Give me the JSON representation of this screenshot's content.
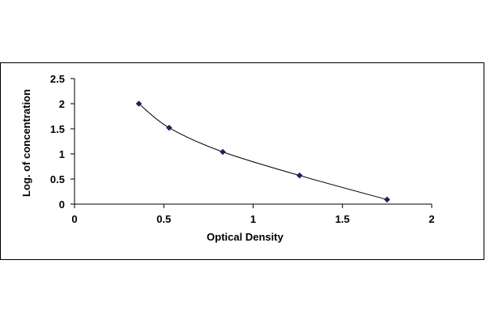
{
  "chart_data": {
    "type": "scatter",
    "xlabel": "Optical Density",
    "ylabel": "Log. of concentration",
    "xlim": [
      0,
      2
    ],
    "ylim": [
      0,
      2.5
    ],
    "x_ticks": [
      "0",
      "0.5",
      "1",
      "1.5",
      "2"
    ],
    "y_ticks": [
      "0",
      "0.5",
      "1",
      "1.5",
      "2",
      "2.5"
    ],
    "grid": false,
    "trendline": "smooth curve through points",
    "points": [
      {
        "x": 0.36,
        "y": 2.0
      },
      {
        "x": 0.53,
        "y": 1.52
      },
      {
        "x": 0.83,
        "y": 1.04
      },
      {
        "x": 1.26,
        "y": 0.57
      },
      {
        "x": 1.75,
        "y": 0.09
      }
    ],
    "colors": {
      "marker": "#1f1f5f",
      "line": "#000000"
    }
  }
}
